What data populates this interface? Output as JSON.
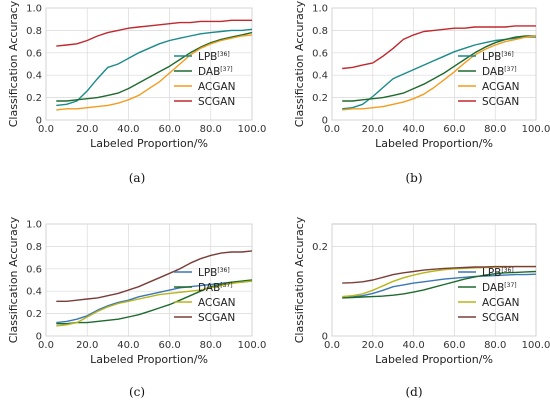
{
  "chart_data": [
    {
      "panel": "(a)",
      "type": "line",
      "xlabel": "Labeled Proportion/%",
      "ylabel": "Classification Accuracy",
      "xlim": [
        0,
        100
      ],
      "ylim": [
        0,
        1.0
      ],
      "xticks": [
        "0.0",
        "20.0",
        "40.0",
        "60.0",
        "80.0",
        "100.0"
      ],
      "yticks": [
        "0",
        "0.2",
        "0.4",
        "0.6",
        "0.8",
        "1.0"
      ],
      "grid": true,
      "legend": "right",
      "series": [
        {
          "name": "LPB",
          "ref": "[36]",
          "color": "#1a8a8a",
          "x": [
            5,
            10,
            15,
            20,
            25,
            30,
            35,
            40,
            45,
            50,
            55,
            60,
            65,
            70,
            75,
            80,
            85,
            90,
            95,
            100
          ],
          "y": [
            0.13,
            0.14,
            0.17,
            0.26,
            0.37,
            0.47,
            0.5,
            0.55,
            0.6,
            0.64,
            0.68,
            0.71,
            0.73,
            0.75,
            0.77,
            0.78,
            0.79,
            0.8,
            0.8,
            0.81
          ]
        },
        {
          "name": "DAB",
          "ref": "[37]",
          "color": "#1e6b2e",
          "x": [
            5,
            10,
            15,
            20,
            25,
            30,
            35,
            40,
            45,
            50,
            55,
            60,
            65,
            70,
            75,
            80,
            85,
            90,
            95,
            100
          ],
          "y": [
            0.17,
            0.17,
            0.18,
            0.19,
            0.2,
            0.22,
            0.24,
            0.28,
            0.33,
            0.38,
            0.43,
            0.48,
            0.54,
            0.6,
            0.65,
            0.69,
            0.72,
            0.74,
            0.76,
            0.78
          ]
        },
        {
          "name": "ACGAN",
          "ref": "",
          "color": "#f39c1e",
          "x": [
            5,
            10,
            15,
            20,
            25,
            30,
            35,
            40,
            45,
            50,
            55,
            60,
            65,
            70,
            75,
            80,
            85,
            90,
            95,
            100
          ],
          "y": [
            0.09,
            0.1,
            0.1,
            0.11,
            0.12,
            0.13,
            0.15,
            0.18,
            0.22,
            0.28,
            0.34,
            0.42,
            0.5,
            0.58,
            0.64,
            0.68,
            0.71,
            0.73,
            0.75,
            0.76
          ]
        },
        {
          "name": "SCGAN",
          "ref": "",
          "color": "#c0282e",
          "x": [
            5,
            10,
            15,
            20,
            25,
            30,
            35,
            40,
            45,
            50,
            55,
            60,
            65,
            70,
            75,
            80,
            85,
            90,
            95,
            100
          ],
          "y": [
            0.66,
            0.67,
            0.68,
            0.71,
            0.75,
            0.78,
            0.8,
            0.82,
            0.83,
            0.84,
            0.85,
            0.86,
            0.87,
            0.87,
            0.88,
            0.88,
            0.88,
            0.89,
            0.89,
            0.89
          ]
        }
      ]
    },
    {
      "panel": "(b)",
      "type": "line",
      "xlabel": "Labeled Proportion/%",
      "ylabel": "Classification Accuracy",
      "xlim": [
        0,
        100
      ],
      "ylim": [
        0,
        1.0
      ],
      "xticks": [
        "0.0",
        "20.0",
        "40.0",
        "60.0",
        "80.0",
        "100.0"
      ],
      "yticks": [
        "0",
        "0.2",
        "0.4",
        "0.6",
        "0.8",
        "1.0"
      ],
      "grid": true,
      "legend": "right",
      "series": [
        {
          "name": "LPB",
          "ref": "[36]",
          "color": "#1a8a8a",
          "x": [
            5,
            10,
            15,
            20,
            25,
            30,
            35,
            40,
            45,
            50,
            55,
            60,
            65,
            70,
            75,
            80,
            85,
            90,
            95,
            100
          ],
          "y": [
            0.1,
            0.11,
            0.14,
            0.21,
            0.29,
            0.37,
            0.41,
            0.45,
            0.49,
            0.53,
            0.57,
            0.61,
            0.64,
            0.67,
            0.69,
            0.71,
            0.72,
            0.73,
            0.74,
            0.74
          ]
        },
        {
          "name": "DAB",
          "ref": "[37]",
          "color": "#1e6b2e",
          "x": [
            5,
            10,
            15,
            20,
            25,
            30,
            35,
            40,
            45,
            50,
            55,
            60,
            65,
            70,
            75,
            80,
            85,
            90,
            95,
            100
          ],
          "y": [
            0.17,
            0.17,
            0.18,
            0.19,
            0.2,
            0.22,
            0.24,
            0.28,
            0.32,
            0.37,
            0.42,
            0.48,
            0.54,
            0.6,
            0.65,
            0.69,
            0.72,
            0.74,
            0.75,
            0.75
          ]
        },
        {
          "name": "ACGAN",
          "ref": "",
          "color": "#f39c1e",
          "x": [
            5,
            10,
            15,
            20,
            25,
            30,
            35,
            40,
            45,
            50,
            55,
            60,
            65,
            70,
            75,
            80,
            85,
            90,
            95,
            100
          ],
          "y": [
            0.09,
            0.1,
            0.1,
            0.11,
            0.12,
            0.14,
            0.16,
            0.19,
            0.23,
            0.29,
            0.36,
            0.43,
            0.51,
            0.58,
            0.63,
            0.67,
            0.7,
            0.72,
            0.74,
            0.75
          ]
        },
        {
          "name": "SCGAN",
          "ref": "",
          "color": "#c0282e",
          "x": [
            5,
            10,
            15,
            20,
            25,
            30,
            35,
            40,
            45,
            50,
            55,
            60,
            65,
            70,
            75,
            80,
            85,
            90,
            95,
            100
          ],
          "y": [
            0.46,
            0.47,
            0.49,
            0.51,
            0.57,
            0.64,
            0.72,
            0.76,
            0.79,
            0.8,
            0.81,
            0.82,
            0.82,
            0.83,
            0.83,
            0.83,
            0.83,
            0.84,
            0.84,
            0.84
          ]
        }
      ]
    },
    {
      "panel": "(c)",
      "type": "line",
      "xlabel": "Labeled Proportion/%",
      "ylabel": "Classification Accuracy",
      "xlim": [
        0,
        100
      ],
      "ylim": [
        0,
        1.0
      ],
      "xticks": [
        "0.0",
        "20.0",
        "40.0",
        "60.0",
        "80.0",
        "100.0"
      ],
      "yticks": [
        "0",
        "0.2",
        "0.4",
        "0.6",
        "0.8",
        "1.0"
      ],
      "grid": true,
      "legend": "right",
      "series": [
        {
          "name": "LPB",
          "ref": "[36]",
          "color": "#3a77b8",
          "x": [
            5,
            10,
            15,
            20,
            25,
            30,
            35,
            40,
            45,
            50,
            55,
            60,
            65,
            70,
            75,
            80,
            85,
            90,
            95,
            100
          ],
          "y": [
            0.12,
            0.13,
            0.15,
            0.18,
            0.23,
            0.27,
            0.3,
            0.32,
            0.35,
            0.37,
            0.39,
            0.41,
            0.43,
            0.44,
            0.45,
            0.46,
            0.47,
            0.48,
            0.48,
            0.49
          ]
        },
        {
          "name": "DAB",
          "ref": "[37]",
          "color": "#1e6b2e",
          "x": [
            5,
            10,
            15,
            20,
            25,
            30,
            35,
            40,
            45,
            50,
            55,
            60,
            65,
            70,
            75,
            80,
            85,
            90,
            95,
            100
          ],
          "y": [
            0.11,
            0.11,
            0.12,
            0.12,
            0.13,
            0.14,
            0.15,
            0.17,
            0.19,
            0.22,
            0.25,
            0.28,
            0.32,
            0.36,
            0.4,
            0.44,
            0.46,
            0.48,
            0.49,
            0.5
          ]
        },
        {
          "name": "ACGAN",
          "ref": "",
          "color": "#b8b51a",
          "x": [
            5,
            10,
            15,
            20,
            25,
            30,
            35,
            40,
            45,
            50,
            55,
            60,
            65,
            70,
            75,
            80,
            85,
            90,
            95,
            100
          ],
          "y": [
            0.09,
            0.1,
            0.12,
            0.17,
            0.22,
            0.26,
            0.29,
            0.31,
            0.33,
            0.35,
            0.37,
            0.38,
            0.39,
            0.4,
            0.41,
            0.43,
            0.45,
            0.47,
            0.48,
            0.49
          ]
        },
        {
          "name": "SCGAN",
          "ref": "",
          "color": "#7a3e3a",
          "x": [
            5,
            10,
            15,
            20,
            25,
            30,
            35,
            40,
            45,
            50,
            55,
            60,
            65,
            70,
            75,
            80,
            85,
            90,
            95,
            100
          ],
          "y": [
            0.31,
            0.31,
            0.32,
            0.33,
            0.34,
            0.36,
            0.38,
            0.41,
            0.44,
            0.48,
            0.52,
            0.56,
            0.6,
            0.65,
            0.69,
            0.72,
            0.74,
            0.75,
            0.75,
            0.76
          ]
        }
      ]
    },
    {
      "panel": "(d)",
      "type": "line",
      "xlabel": "Labeled Proportion/%",
      "ylabel": "Classification Accuracy",
      "xlim": [
        0,
        100
      ],
      "ylim": [
        0,
        0.25
      ],
      "xticks": [
        "0.0",
        "20.0",
        "40.0",
        "60.0",
        "80.0",
        "100.0"
      ],
      "yticks": [
        "0",
        "0.2"
      ],
      "grid": true,
      "legend": "right",
      "series": [
        {
          "name": "LPB",
          "ref": "[36]",
          "color": "#3a77b8",
          "x": [
            5,
            10,
            15,
            20,
            25,
            30,
            35,
            40,
            45,
            50,
            55,
            60,
            65,
            70,
            75,
            80,
            85,
            90,
            95,
            100
          ],
          "y": [
            0.085,
            0.087,
            0.09,
            0.095,
            0.102,
            0.11,
            0.114,
            0.118,
            0.121,
            0.124,
            0.127,
            0.129,
            0.131,
            0.133,
            0.134,
            0.135,
            0.136,
            0.137,
            0.137,
            0.138
          ]
        },
        {
          "name": "DAB",
          "ref": "[37]",
          "color": "#1e6b2e",
          "x": [
            5,
            10,
            15,
            20,
            25,
            30,
            35,
            40,
            45,
            50,
            55,
            60,
            65,
            70,
            75,
            80,
            85,
            90,
            95,
            100
          ],
          "y": [
            0.085,
            0.086,
            0.087,
            0.088,
            0.089,
            0.091,
            0.094,
            0.098,
            0.103,
            0.109,
            0.115,
            0.121,
            0.127,
            0.132,
            0.136,
            0.139,
            0.141,
            0.142,
            0.143,
            0.144
          ]
        },
        {
          "name": "ACGAN",
          "ref": "",
          "color": "#b8b51a",
          "x": [
            5,
            10,
            15,
            20,
            25,
            30,
            35,
            40,
            45,
            50,
            55,
            60,
            65,
            70,
            75,
            80,
            85,
            90,
            95,
            100
          ],
          "y": [
            0.088,
            0.09,
            0.094,
            0.102,
            0.112,
            0.122,
            0.13,
            0.136,
            0.141,
            0.145,
            0.148,
            0.15,
            0.151,
            0.152,
            0.153,
            0.154,
            0.154,
            0.155,
            0.155,
            0.155
          ]
        },
        {
          "name": "SCGAN",
          "ref": "",
          "color": "#7a3e3a",
          "x": [
            5,
            10,
            15,
            20,
            25,
            30,
            35,
            40,
            45,
            50,
            55,
            60,
            65,
            70,
            75,
            80,
            85,
            90,
            95,
            100
          ],
          "y": [
            0.118,
            0.119,
            0.121,
            0.125,
            0.131,
            0.137,
            0.141,
            0.144,
            0.147,
            0.149,
            0.151,
            0.152,
            0.153,
            0.154,
            0.154,
            0.155,
            0.155,
            0.155,
            0.155,
            0.155
          ]
        }
      ]
    }
  ]
}
